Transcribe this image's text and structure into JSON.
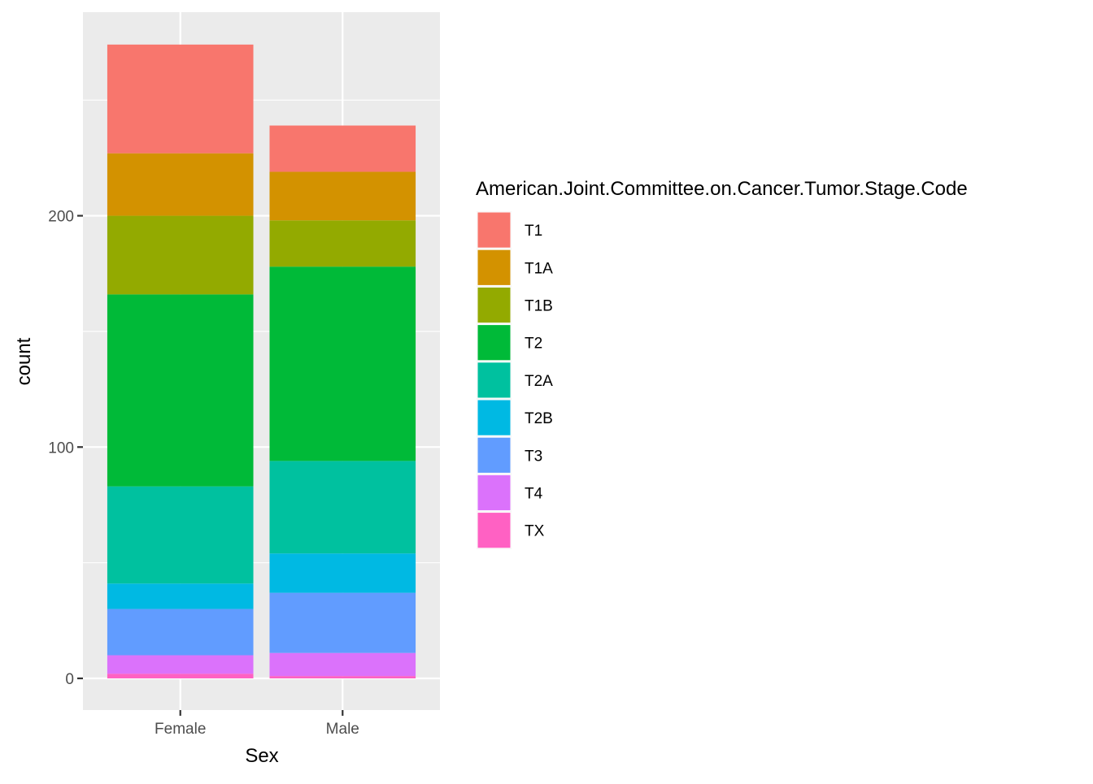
{
  "chart_data": {
    "type": "bar",
    "stacked": true,
    "xlabel": "Sex",
    "ylabel": "count",
    "categories": [
      "Female",
      "Male"
    ],
    "y_ticks": [
      0,
      100,
      200
    ],
    "ylim": [
      -13.7,
      288
    ],
    "legend_title": "American.Joint.Committee.on.Cancer.Tumor.Stage.Code",
    "legend_position": "right",
    "grid": true,
    "series": [
      {
        "name": "T1",
        "color": "#F8766D",
        "values": [
          47,
          20
        ]
      },
      {
        "name": "T1A",
        "color": "#D39200",
        "values": [
          27,
          21
        ]
      },
      {
        "name": "T1B",
        "color": "#93AA00",
        "values": [
          34,
          20
        ]
      },
      {
        "name": "T2",
        "color": "#00BA38",
        "values": [
          83,
          84
        ]
      },
      {
        "name": "T2A",
        "color": "#00C19F",
        "values": [
          42,
          40
        ]
      },
      {
        "name": "T2B",
        "color": "#00B9E3",
        "values": [
          11,
          17
        ]
      },
      {
        "name": "T3",
        "color": "#619CFF",
        "values": [
          20,
          26
        ]
      },
      {
        "name": "T4",
        "color": "#DB72FB",
        "values": [
          8,
          10
        ]
      },
      {
        "name": "TX",
        "color": "#FF61C3",
        "values": [
          2,
          1
        ]
      }
    ]
  }
}
